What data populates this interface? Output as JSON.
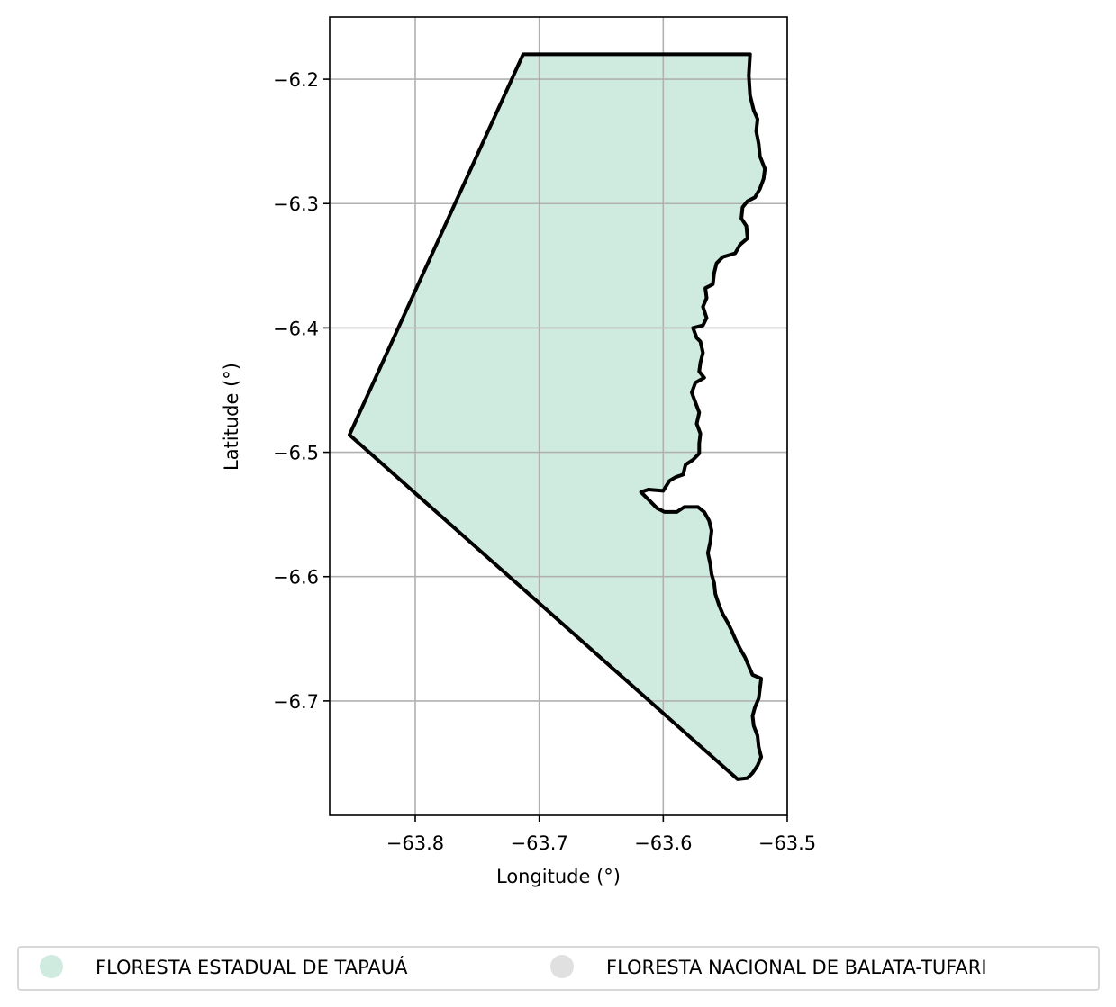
{
  "map": {
    "xlabel": "Longitude (°)",
    "ylabel": "Latitude (°)",
    "x_ticks": [
      {
        "value": -63.8,
        "label": "−63.8"
      },
      {
        "value": -63.7,
        "label": "−63.7"
      },
      {
        "value": -63.6,
        "label": "−63.6"
      },
      {
        "value": -63.5,
        "label": "−63.5"
      }
    ],
    "y_ticks": [
      {
        "value": -6.2,
        "label": "−6.2"
      },
      {
        "value": -6.3,
        "label": "−6.3"
      },
      {
        "value": -6.4,
        "label": "−6.4"
      },
      {
        "value": -6.5,
        "label": "−6.5"
      },
      {
        "value": -6.6,
        "label": "−6.6"
      },
      {
        "value": -6.7,
        "label": "−6.7"
      }
    ],
    "xlim": [
      -63.869,
      -63.5
    ],
    "ylim": [
      -6.792,
      -6.15
    ],
    "grid": true,
    "boundary_color": "#000000",
    "polygon": {
      "name": "FLORESTA ESTADUAL DE TAPAUÁ",
      "fill": "#cfebdf",
      "coordinates": [
        [
          -63.713,
          -6.18
        ],
        [
          -63.53,
          -6.18
        ],
        [
          -63.531,
          -6.197
        ],
        [
          -63.53,
          -6.213
        ],
        [
          -63.527,
          -6.225
        ],
        [
          -63.524,
          -6.232
        ],
        [
          -63.525,
          -6.242
        ],
        [
          -63.523,
          -6.252
        ],
        [
          -63.522,
          -6.262
        ],
        [
          -63.518,
          -6.272
        ],
        [
          -63.519,
          -6.28
        ],
        [
          -63.522,
          -6.288
        ],
        [
          -63.526,
          -6.295
        ],
        [
          -63.532,
          -6.298
        ],
        [
          -63.536,
          -6.303
        ],
        [
          -63.537,
          -6.312
        ],
        [
          -63.533,
          -6.318
        ],
        [
          -63.532,
          -6.328
        ],
        [
          -63.538,
          -6.333
        ],
        [
          -63.542,
          -6.34
        ],
        [
          -63.552,
          -6.343
        ],
        [
          -63.557,
          -6.348
        ],
        [
          -63.559,
          -6.356
        ],
        [
          -63.56,
          -6.365
        ],
        [
          -63.566,
          -6.368
        ],
        [
          -63.565,
          -6.376
        ],
        [
          -63.568,
          -6.383
        ],
        [
          -63.565,
          -6.392
        ],
        [
          -63.568,
          -6.398
        ],
        [
          -63.576,
          -6.4
        ],
        [
          -63.573,
          -6.408
        ],
        [
          -63.57,
          -6.411
        ],
        [
          -63.568,
          -6.42
        ],
        [
          -63.57,
          -6.428
        ],
        [
          -63.571,
          -6.435
        ],
        [
          -63.567,
          -6.44
        ],
        [
          -63.574,
          -6.444
        ],
        [
          -63.577,
          -6.452
        ],
        [
          -63.574,
          -6.46
        ],
        [
          -63.571,
          -6.468
        ],
        [
          -63.573,
          -6.477
        ],
        [
          -63.57,
          -6.485
        ],
        [
          -63.571,
          -6.493
        ],
        [
          -63.571,
          -6.501
        ],
        [
          -63.576,
          -6.506
        ],
        [
          -63.582,
          -6.51
        ],
        [
          -63.584,
          -6.518
        ],
        [
          -63.59,
          -6.52
        ],
        [
          -63.595,
          -6.523
        ],
        [
          -63.6,
          -6.531
        ],
        [
          -63.612,
          -6.53
        ],
        [
          -63.618,
          -6.532
        ],
        [
          -63.61,
          -6.54
        ],
        [
          -63.605,
          -6.545
        ],
        [
          -63.599,
          -6.548
        ],
        [
          -63.589,
          -6.548
        ],
        [
          -63.583,
          -6.544
        ],
        [
          -63.572,
          -6.544
        ],
        [
          -63.567,
          -6.548
        ],
        [
          -63.563,
          -6.555
        ],
        [
          -63.561,
          -6.563
        ],
        [
          -63.562,
          -6.572
        ],
        [
          -63.564,
          -6.581
        ],
        [
          -63.562,
          -6.59
        ],
        [
          -63.561,
          -6.598
        ],
        [
          -63.559,
          -6.605
        ],
        [
          -63.558,
          -6.614
        ],
        [
          -63.555,
          -6.623
        ],
        [
          -63.552,
          -6.63
        ],
        [
          -63.548,
          -6.637
        ],
        [
          -63.545,
          -6.643
        ],
        [
          -63.542,
          -6.65
        ],
        [
          -63.538,
          -6.658
        ],
        [
          -63.534,
          -6.665
        ],
        [
          -63.531,
          -6.672
        ],
        [
          -63.528,
          -6.679
        ],
        [
          -63.521,
          -6.682
        ],
        [
          -63.522,
          -6.69
        ],
        [
          -63.523,
          -6.698
        ],
        [
          -63.526,
          -6.705
        ],
        [
          -63.528,
          -6.712
        ],
        [
          -63.527,
          -6.72
        ],
        [
          -63.524,
          -6.728
        ],
        [
          -63.523,
          -6.737
        ],
        [
          -63.521,
          -6.745
        ],
        [
          -63.524,
          -6.752
        ],
        [
          -63.528,
          -6.758
        ],
        [
          -63.532,
          -6.762
        ],
        [
          -63.54,
          -6.763
        ],
        [
          -63.853,
          -6.486
        ],
        [
          -63.713,
          -6.18
        ]
      ]
    }
  },
  "legend": {
    "placement": "bottom",
    "items": [
      {
        "label": "FLORESTA ESTADUAL DE TAPAUÁ",
        "color": "#cfebdf"
      },
      {
        "label": "FLORESTA NACIONAL DE BALATA-TUFARI",
        "color": "#e0e0e0"
      }
    ]
  }
}
